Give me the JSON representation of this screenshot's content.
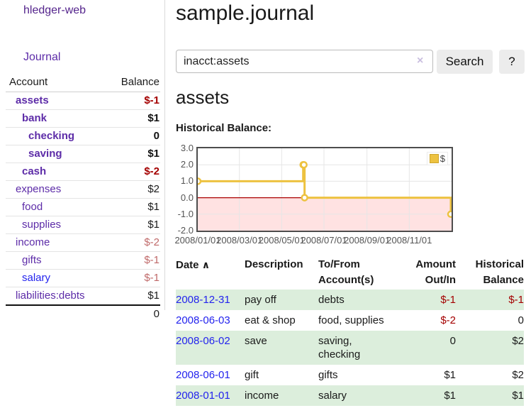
{
  "app": {
    "title": "hledger-web"
  },
  "nav": {
    "journal_label": "Journal"
  },
  "sidebar": {
    "header": {
      "account": "Account",
      "balance": "Balance"
    },
    "accounts": [
      {
        "name": "assets",
        "depth": 0,
        "bold": true,
        "name_style": "purple",
        "balance": "$-1",
        "balance_style": "neg-strong"
      },
      {
        "name": "bank",
        "depth": 1,
        "bold": true,
        "name_style": "purple",
        "balance": "$1",
        "balance_style": "pos-strong"
      },
      {
        "name": "checking",
        "depth": 2,
        "bold": true,
        "name_style": "purple",
        "balance": "0",
        "balance_style": "pos-strong"
      },
      {
        "name": "saving",
        "depth": 2,
        "bold": true,
        "name_style": "purple",
        "balance": "$1",
        "balance_style": "pos-strong"
      },
      {
        "name": "cash",
        "depth": 1,
        "bold": true,
        "name_style": "purple",
        "balance": "$-2",
        "balance_style": "neg-strong"
      },
      {
        "name": "expenses",
        "depth": 0,
        "bold": false,
        "name_style": "purple",
        "balance": "$2",
        "balance_style": "plain"
      },
      {
        "name": "food",
        "depth": 1,
        "bold": false,
        "name_style": "purple",
        "balance": "$1",
        "balance_style": "plain"
      },
      {
        "name": "supplies",
        "depth": 1,
        "bold": false,
        "name_style": "purple",
        "balance": "$1",
        "balance_style": "plain"
      },
      {
        "name": "income",
        "depth": 0,
        "bold": false,
        "name_style": "purple",
        "balance": "$-2",
        "balance_style": "neg-soft"
      },
      {
        "name": "gifts",
        "depth": 1,
        "bold": false,
        "name_style": "purple",
        "balance": "$-1",
        "balance_style": "neg-soft"
      },
      {
        "name": "salary",
        "depth": 1,
        "bold": false,
        "name_style": "blue",
        "balance": "$-1",
        "balance_style": "neg-soft"
      },
      {
        "name": "liabilities:debts",
        "depth": 0,
        "bold": false,
        "name_style": "purple",
        "balance": "$1",
        "balance_style": "plain"
      }
    ],
    "total": "0"
  },
  "header": {
    "title": "sample.journal"
  },
  "search": {
    "value": "inacct:assets",
    "clear_icon": "×",
    "button_label": "Search",
    "help_label": "?"
  },
  "account_page": {
    "title": "assets"
  },
  "chart_data": {
    "type": "line",
    "step": true,
    "title": "Historical Balance:",
    "xlabel": "",
    "ylabel": "",
    "series": [
      {
        "name": "$",
        "points": [
          [
            "2008-01-01",
            1
          ],
          [
            "2008-06-01",
            2
          ],
          [
            "2008-06-02",
            2
          ],
          [
            "2008-06-03",
            0
          ],
          [
            "2008-12-31",
            -1
          ]
        ]
      }
    ],
    "x_range": [
      "2008-01-01",
      "2009-01-01"
    ],
    "ylim": [
      -2,
      3
    ],
    "yticks": [
      3,
      2,
      1,
      0,
      -1,
      -2
    ],
    "ytick_labels": [
      "3.0",
      "2.0",
      "1.0",
      "0.0",
      "-1.0",
      "-2.0"
    ],
    "xticks": [
      {
        "date": "2008-01-01",
        "label": "2008/01/01"
      },
      {
        "date": "2008-03-01",
        "label": "2008/03/01"
      },
      {
        "date": "2008-05-01",
        "label": "2008/05/01"
      },
      {
        "date": "2008-07-01",
        "label": "2008/07/01"
      },
      {
        "date": "2008-09-01",
        "label": "2008/09/01"
      },
      {
        "date": "2008-11-01",
        "label": "2008/11/01"
      }
    ],
    "legend": {
      "label": "$",
      "position": "top-right"
    },
    "grid": true,
    "negative_region": true,
    "colors": {
      "line": "#edc240",
      "marker_fill": "#ffffff",
      "negative_fill": "#ffdddd",
      "zero_line": "#aa0000",
      "grid": "#e6e6e6",
      "border": "#4d4d4d"
    }
  },
  "transactions": {
    "headers": {
      "date": "Date",
      "sort_icon": "∧",
      "description": "Description",
      "accounts_line1": "To/From",
      "accounts_line2": "Account(s)",
      "amount_line1": "Amount",
      "amount_line2": "Out/In",
      "balance_line1": "Historical",
      "balance_line2": "Balance"
    },
    "rows": [
      {
        "date": "2008-12-31",
        "description": "pay off",
        "accounts": "debts",
        "amount": "$-1",
        "amount_neg": true,
        "balance": "$-1",
        "balance_neg": true
      },
      {
        "date": "2008-06-03",
        "description": "eat & shop",
        "accounts": "food, supplies",
        "amount": "$-2",
        "amount_neg": true,
        "balance": "0",
        "balance_neg": false
      },
      {
        "date": "2008-06-02",
        "description": "save",
        "accounts": "saving, checking",
        "amount": "0",
        "amount_neg": false,
        "balance": "$2",
        "balance_neg": false
      },
      {
        "date": "2008-06-01",
        "description": "gift",
        "accounts": "gifts",
        "amount": "$1",
        "amount_neg": false,
        "balance": "$2",
        "balance_neg": false
      },
      {
        "date": "2008-01-01",
        "description": "income",
        "accounts": "salary",
        "amount": "$1",
        "amount_neg": false,
        "balance": "$1",
        "balance_neg": false
      }
    ]
  },
  "colors": {
    "accent_purple": "#5d2ca8",
    "link_blue": "#2323ee",
    "neg_red": "#a40000",
    "soft_red": "#c06a6a",
    "row_green": "#dceedc"
  }
}
